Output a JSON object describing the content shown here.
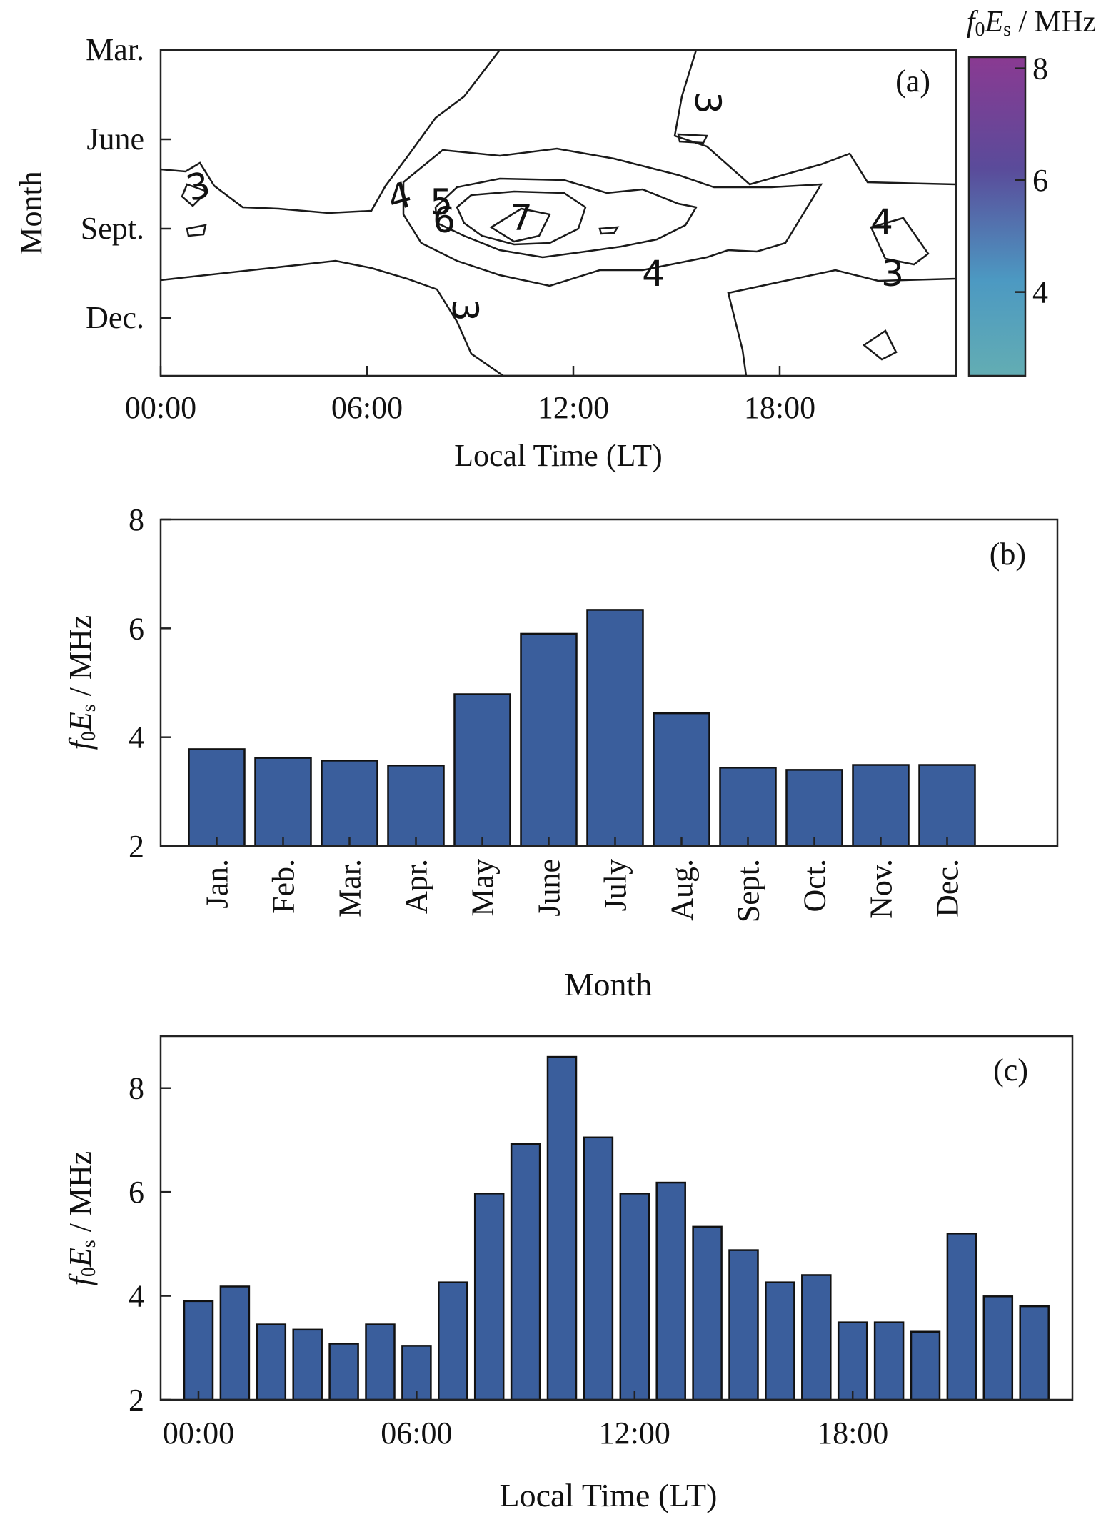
{
  "colors": {
    "bar": "#3a5e9c",
    "low": "#63adb3",
    "mid": "#4c99c2",
    "high": "#6b3f94",
    "peak": "#8a3a92"
  },
  "chart_data": [
    {
      "type": "heatmap",
      "panel_label": "(a)",
      "xlabel": "Local Time (LT)",
      "ylabel": "Month",
      "x_ticks": [
        "00:00",
        "06:00",
        "12:00",
        "18:00"
      ],
      "y_ticks": [
        "Mar.",
        "June",
        "Sept.",
        "Dec."
      ],
      "colorbar": {
        "label_f": "f",
        "label_sub0": "0",
        "label_E": "E",
        "label_subs": "s",
        "label_unit": " / MHz",
        "ticks": [
          "8",
          "6",
          "4"
        ],
        "range": [
          2.5,
          8.2
        ]
      },
      "contour_levels": [
        "3",
        "3",
        "3",
        "3",
        "4",
        "4",
        "4",
        "5",
        "6",
        "7"
      ]
    },
    {
      "type": "bar",
      "panel_label": "(b)",
      "xlabel": "Month",
      "ylabel_f": "f",
      "ylabel_sub0": "0",
      "ylabel_E": "E",
      "ylabel_subs": "s",
      "ylabel_unit": " / MHz",
      "ylim": [
        2,
        8
      ],
      "y_ticks": [
        "2",
        "4",
        "6",
        "8"
      ],
      "categories": [
        "Jan.",
        "Feb.",
        "Mar.",
        "Apr.",
        "May",
        "June",
        "July",
        "Aug.",
        "Sept.",
        "Oct.",
        "Nov.",
        "Dec."
      ],
      "values": [
        3.78,
        3.62,
        3.57,
        3.48,
        4.79,
        5.9,
        6.34,
        4.44,
        3.44,
        3.4,
        3.49,
        3.49
      ]
    },
    {
      "type": "bar",
      "panel_label": "(c)",
      "xlabel": "Local Time (LT)",
      "ylabel_f": "f",
      "ylabel_sub0": "0",
      "ylabel_E": "E",
      "ylabel_subs": "s",
      "ylabel_unit": " / MHz",
      "ylim": [
        2,
        9
      ],
      "y_ticks": [
        "2",
        "4",
        "6",
        "8"
      ],
      "x_ticks": [
        "00:00",
        "06:00",
        "12:00",
        "18:00"
      ],
      "hours": [
        0,
        1,
        2,
        3,
        4,
        5,
        6,
        7,
        8,
        9,
        10,
        11,
        12,
        13,
        14,
        15,
        16,
        17,
        18,
        19,
        20,
        21,
        22,
        23
      ],
      "values": [
        3.9,
        4.18,
        3.45,
        3.35,
        3.08,
        3.45,
        3.04,
        4.26,
        5.97,
        6.92,
        8.6,
        7.05,
        5.97,
        6.18,
        5.33,
        4.88,
        4.26,
        4.4,
        3.49,
        3.49,
        3.31,
        5.2,
        3.99,
        3.8
      ]
    }
  ]
}
